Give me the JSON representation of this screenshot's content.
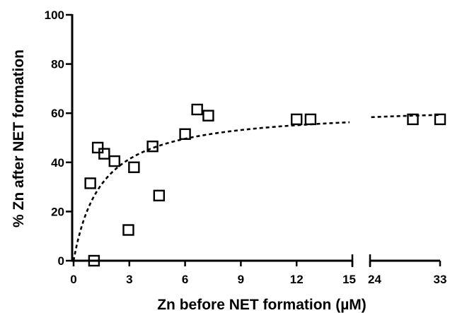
{
  "chart_data": {
    "type": "scatter",
    "title": "",
    "xlabel": "Zn before NET formation (µM)",
    "ylabel": "% Zn after NET formation",
    "ylim": [
      0,
      100
    ],
    "y_ticks": [
      0,
      20,
      40,
      60,
      80,
      100
    ],
    "x_axis": {
      "broken": true,
      "segments": [
        {
          "range": [
            0,
            15
          ],
          "ticks": [
            0,
            3,
            6,
            9,
            12,
            15
          ]
        },
        {
          "range": [
            24,
            33
          ],
          "ticks": [
            24,
            33
          ]
        }
      ],
      "tick_labels": [
        "0",
        "3",
        "6",
        "9",
        "12",
        "15",
        "24",
        "33"
      ]
    },
    "y_tick_labels": [
      "0",
      "20",
      "40",
      "60",
      "80",
      "100"
    ],
    "grid": false,
    "legend": "none",
    "marker": "open-square",
    "points": [
      {
        "x": 0.9,
        "y": 31.5
      },
      {
        "x": 1.1,
        "y": 0
      },
      {
        "x": 1.3,
        "y": 46
      },
      {
        "x": 1.65,
        "y": 43.5
      },
      {
        "x": 2.2,
        "y": 40.5
      },
      {
        "x": 2.95,
        "y": 12.5
      },
      {
        "x": 3.25,
        "y": 38
      },
      {
        "x": 4.25,
        "y": 46.5
      },
      {
        "x": 4.6,
        "y": 26.5
      },
      {
        "x": 6.0,
        "y": 51.5
      },
      {
        "x": 6.65,
        "y": 61.5
      },
      {
        "x": 7.25,
        "y": 59
      },
      {
        "x": 12.0,
        "y": 57.5
      },
      {
        "x": 12.75,
        "y": 57.5
      },
      {
        "x": 29.5,
        "y": 57.5
      },
      {
        "x": 33.0,
        "y": 57.5
      }
    ],
    "fit_curve": {
      "style": "dashed",
      "model": "hyperbolic",
      "bmax": 62,
      "kd": 1.5
    }
  }
}
